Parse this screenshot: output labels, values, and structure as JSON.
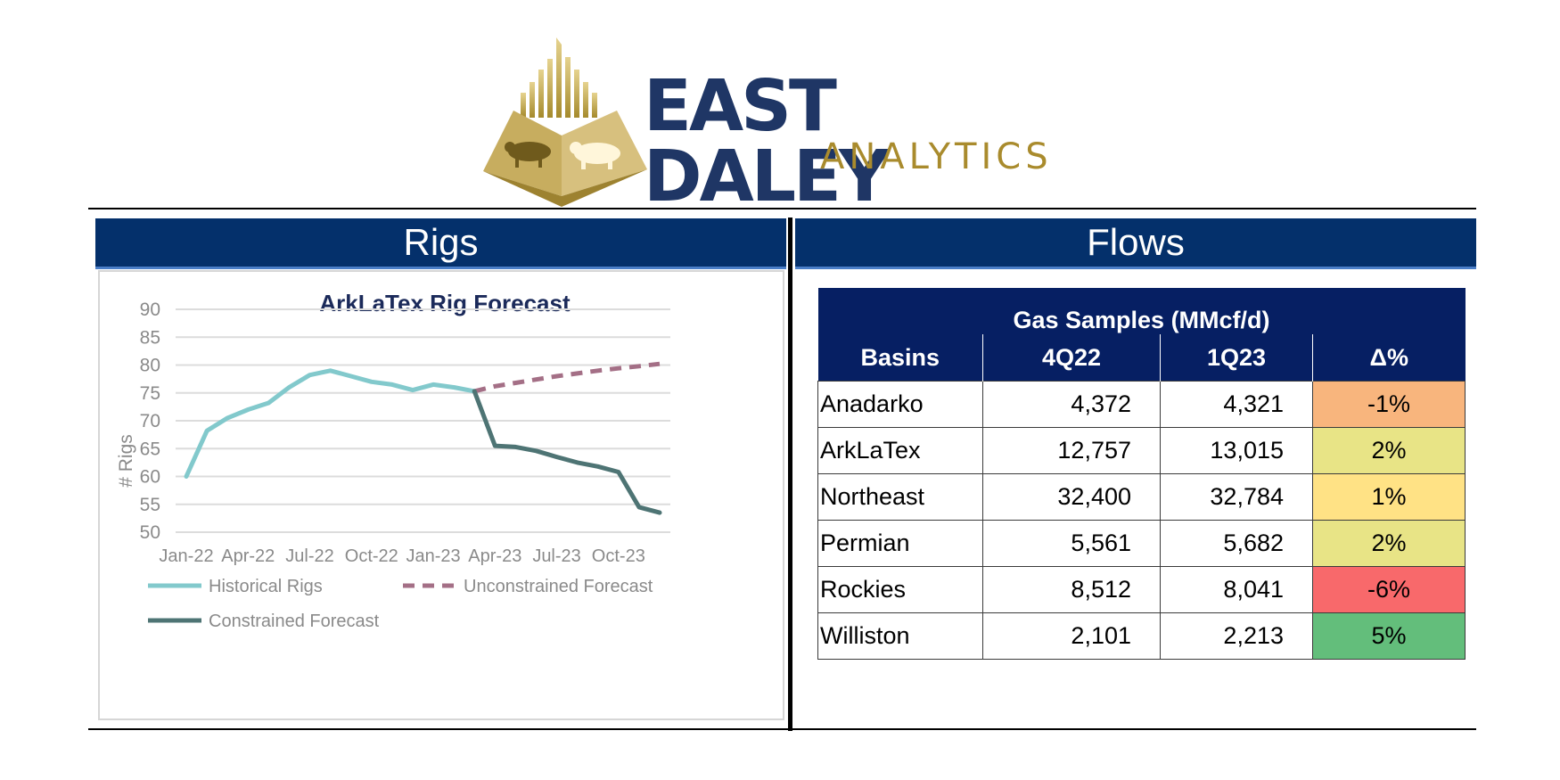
{
  "logo": {
    "brand": "EAST DALEY",
    "sub": "ANALYTICS"
  },
  "colors": {
    "header_bg": "#04306b",
    "table_header_bg": "#061f63",
    "historical": "#82c9cc",
    "unconstrained": "#a46f86",
    "constrained": "#4e7474",
    "logo_navy": "#1f3665",
    "logo_gold": "#a98b2d"
  },
  "rigs_panel": {
    "header": "Rigs"
  },
  "flows_panel": {
    "header": "Flows"
  },
  "chart_data": {
    "type": "line",
    "title": "ArkLaTex Rig Forecast",
    "ylabel": "# Rigs",
    "xlabel": "",
    "ylim": [
      50,
      90
    ],
    "y_ticks": [
      "90",
      "85",
      "80",
      "75",
      "70",
      "65",
      "60",
      "55",
      "50"
    ],
    "x_tick_labels": [
      "Jan-22",
      "Apr-22",
      "Jul-22",
      "Oct-22",
      "Jan-23",
      "Apr-23",
      "Jul-23",
      "Oct-23"
    ],
    "x": [
      "Jan-22",
      "Feb-22",
      "Mar-22",
      "Apr-22",
      "May-22",
      "Jun-22",
      "Jul-22",
      "Aug-22",
      "Sep-22",
      "Oct-22",
      "Nov-22",
      "Dec-22",
      "Jan-23",
      "Feb-23",
      "Mar-23",
      "Apr-23",
      "May-23",
      "Jun-23",
      "Jul-23",
      "Aug-23",
      "Sep-23",
      "Oct-23",
      "Nov-23",
      "Dec-23"
    ],
    "grid": true,
    "legend_position": "bottom",
    "series": [
      {
        "name": "Historical Rigs",
        "style": "solid",
        "color_key": "historical",
        "points": [
          [
            "Jan-22",
            60
          ],
          [
            "Feb-22",
            68.2
          ],
          [
            "Mar-22",
            70.5
          ],
          [
            "Apr-22",
            72
          ],
          [
            "May-22",
            73.2
          ],
          [
            "Jun-22",
            76
          ],
          [
            "Jul-22",
            78.2
          ],
          [
            "Aug-22",
            79
          ],
          [
            "Sep-22",
            78
          ],
          [
            "Oct-22",
            77
          ],
          [
            "Nov-22",
            76.5
          ],
          [
            "Dec-22",
            75.5
          ],
          [
            "Jan-23",
            76.5
          ],
          [
            "Feb-23",
            76
          ],
          [
            "Mar-23",
            75.3
          ]
        ]
      },
      {
        "name": "Unconstrained Forecast",
        "style": "dashed",
        "color_key": "unconstrained",
        "points": [
          [
            "Mar-23",
            75.3
          ],
          [
            "Apr-23",
            76.2
          ],
          [
            "May-23",
            76.8
          ],
          [
            "Jun-23",
            77.4
          ],
          [
            "Jul-23",
            78
          ],
          [
            "Aug-23",
            78.5
          ],
          [
            "Sep-23",
            79
          ],
          [
            "Oct-23",
            79.4
          ],
          [
            "Nov-23",
            79.8
          ],
          [
            "Dec-23",
            80.2
          ]
        ]
      },
      {
        "name": "Constrained Forecast",
        "style": "solid",
        "color_key": "constrained",
        "points": [
          [
            "Mar-23",
            75.3
          ],
          [
            "Apr-23",
            65.5
          ],
          [
            "May-23",
            65.3
          ],
          [
            "Jun-23",
            64.6
          ],
          [
            "Jul-23",
            63.5
          ],
          [
            "Aug-23",
            62.5
          ],
          [
            "Sep-23",
            61.8
          ],
          [
            "Oct-23",
            60.8
          ],
          [
            "Nov-23",
            54.5
          ],
          [
            "Dec-23",
            53.5
          ]
        ]
      }
    ]
  },
  "table": {
    "title": "Gas Samples (MMcf/d)",
    "headers": [
      "Basins",
      "4Q22",
      "1Q23",
      "Δ%"
    ],
    "rows": [
      {
        "basin": "Anadarko",
        "q4_22": "4,372",
        "q1_23": "4,321",
        "pct": "-1%",
        "color": "#f8b57d"
      },
      {
        "basin": "ArkLaTex",
        "q4_22": "12,757",
        "q1_23": "13,015",
        "pct": "2%",
        "color": "#e8e486"
      },
      {
        "basin": "Northeast",
        "q4_22": "32,400",
        "q1_23": "32,784",
        "pct": "1%",
        "color": "#ffe285"
      },
      {
        "basin": "Permian",
        "q4_22": "5,561",
        "q1_23": "5,682",
        "pct": "2%",
        "color": "#e8e486"
      },
      {
        "basin": "Rockies",
        "q4_22": "8,512",
        "q1_23": "8,041",
        "pct": "-6%",
        "color": "#f8696b"
      },
      {
        "basin": "Williston",
        "q4_22": "2,101",
        "q1_23": "2,213",
        "pct": "5%",
        "color": "#63be7b"
      }
    ]
  }
}
